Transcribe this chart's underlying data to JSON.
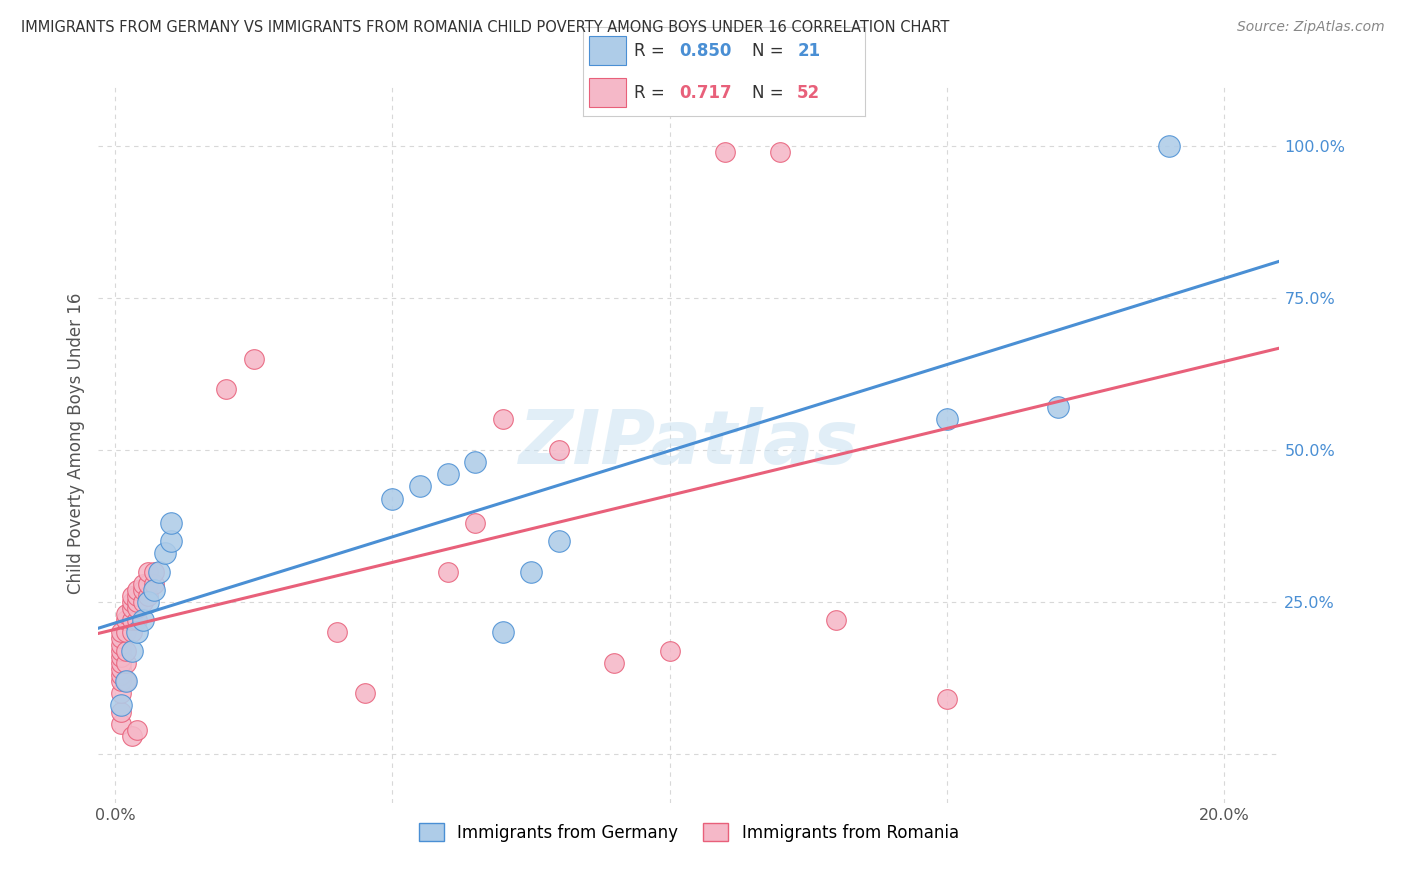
{
  "title": "IMMIGRANTS FROM GERMANY VS IMMIGRANTS FROM ROMANIA CHILD POVERTY AMONG BOYS UNDER 16 CORRELATION CHART",
  "source": "Source: ZipAtlas.com",
  "ylabel": "Child Poverty Among Boys Under 16",
  "germany_R": 0.85,
  "germany_N": 21,
  "romania_R": 0.717,
  "romania_N": 52,
  "germany_color": "#aecce8",
  "romania_color": "#f5b8c8",
  "germany_line_color": "#4a8fd4",
  "romania_line_color": "#e8607a",
  "watermark": "ZIPatlas",
  "germany_scatter": [
    [
      0.001,
      0.08
    ],
    [
      0.002,
      0.12
    ],
    [
      0.003,
      0.17
    ],
    [
      0.004,
      0.2
    ],
    [
      0.005,
      0.22
    ],
    [
      0.006,
      0.25
    ],
    [
      0.007,
      0.27
    ],
    [
      0.008,
      0.3
    ],
    [
      0.009,
      0.33
    ],
    [
      0.01,
      0.35
    ],
    [
      0.01,
      0.38
    ],
    [
      0.05,
      0.42
    ],
    [
      0.055,
      0.44
    ],
    [
      0.06,
      0.46
    ],
    [
      0.065,
      0.48
    ],
    [
      0.07,
      0.2
    ],
    [
      0.075,
      0.3
    ],
    [
      0.08,
      0.35
    ],
    [
      0.15,
      0.55
    ],
    [
      0.17,
      0.57
    ],
    [
      0.19,
      1.0
    ]
  ],
  "romania_scatter": [
    [
      0.001,
      0.05
    ],
    [
      0.001,
      0.07
    ],
    [
      0.001,
      0.1
    ],
    [
      0.001,
      0.12
    ],
    [
      0.001,
      0.13
    ],
    [
      0.001,
      0.14
    ],
    [
      0.001,
      0.15
    ],
    [
      0.001,
      0.16
    ],
    [
      0.001,
      0.17
    ],
    [
      0.001,
      0.18
    ],
    [
      0.001,
      0.19
    ],
    [
      0.001,
      0.2
    ],
    [
      0.002,
      0.12
    ],
    [
      0.002,
      0.15
    ],
    [
      0.002,
      0.17
    ],
    [
      0.002,
      0.2
    ],
    [
      0.002,
      0.22
    ],
    [
      0.002,
      0.23
    ],
    [
      0.003,
      0.2
    ],
    [
      0.003,
      0.22
    ],
    [
      0.003,
      0.24
    ],
    [
      0.003,
      0.25
    ],
    [
      0.003,
      0.26
    ],
    [
      0.004,
      0.22
    ],
    [
      0.004,
      0.24
    ],
    [
      0.004,
      0.25
    ],
    [
      0.004,
      0.26
    ],
    [
      0.004,
      0.27
    ],
    [
      0.005,
      0.25
    ],
    [
      0.005,
      0.27
    ],
    [
      0.005,
      0.28
    ],
    [
      0.006,
      0.26
    ],
    [
      0.006,
      0.28
    ],
    [
      0.006,
      0.3
    ],
    [
      0.007,
      0.28
    ],
    [
      0.007,
      0.3
    ],
    [
      0.02,
      0.6
    ],
    [
      0.025,
      0.65
    ],
    [
      0.04,
      0.2
    ],
    [
      0.045,
      0.1
    ],
    [
      0.06,
      0.3
    ],
    [
      0.065,
      0.38
    ],
    [
      0.07,
      0.55
    ],
    [
      0.08,
      0.5
    ],
    [
      0.09,
      0.15
    ],
    [
      0.1,
      0.17
    ],
    [
      0.11,
      0.99
    ],
    [
      0.12,
      0.99
    ],
    [
      0.13,
      0.22
    ],
    [
      0.15,
      0.09
    ],
    [
      0.003,
      0.03
    ],
    [
      0.004,
      0.04
    ]
  ],
  "xlim": [
    -0.003,
    0.21
  ],
  "ylim": [
    -0.08,
    1.1
  ],
  "x_ticks": [
    0.0,
    0.05,
    0.1,
    0.15,
    0.2
  ],
  "x_ticklabels": [
    "0.0%",
    "",
    "",
    "",
    "20.0%"
  ],
  "y_ticks": [
    0.0,
    0.25,
    0.5,
    0.75,
    1.0
  ],
  "y_ticklabels": [
    "",
    "25.0%",
    "50.0%",
    "75.0%",
    "100.0%"
  ],
  "background_color": "#ffffff",
  "grid_color": "#d8d8d8"
}
